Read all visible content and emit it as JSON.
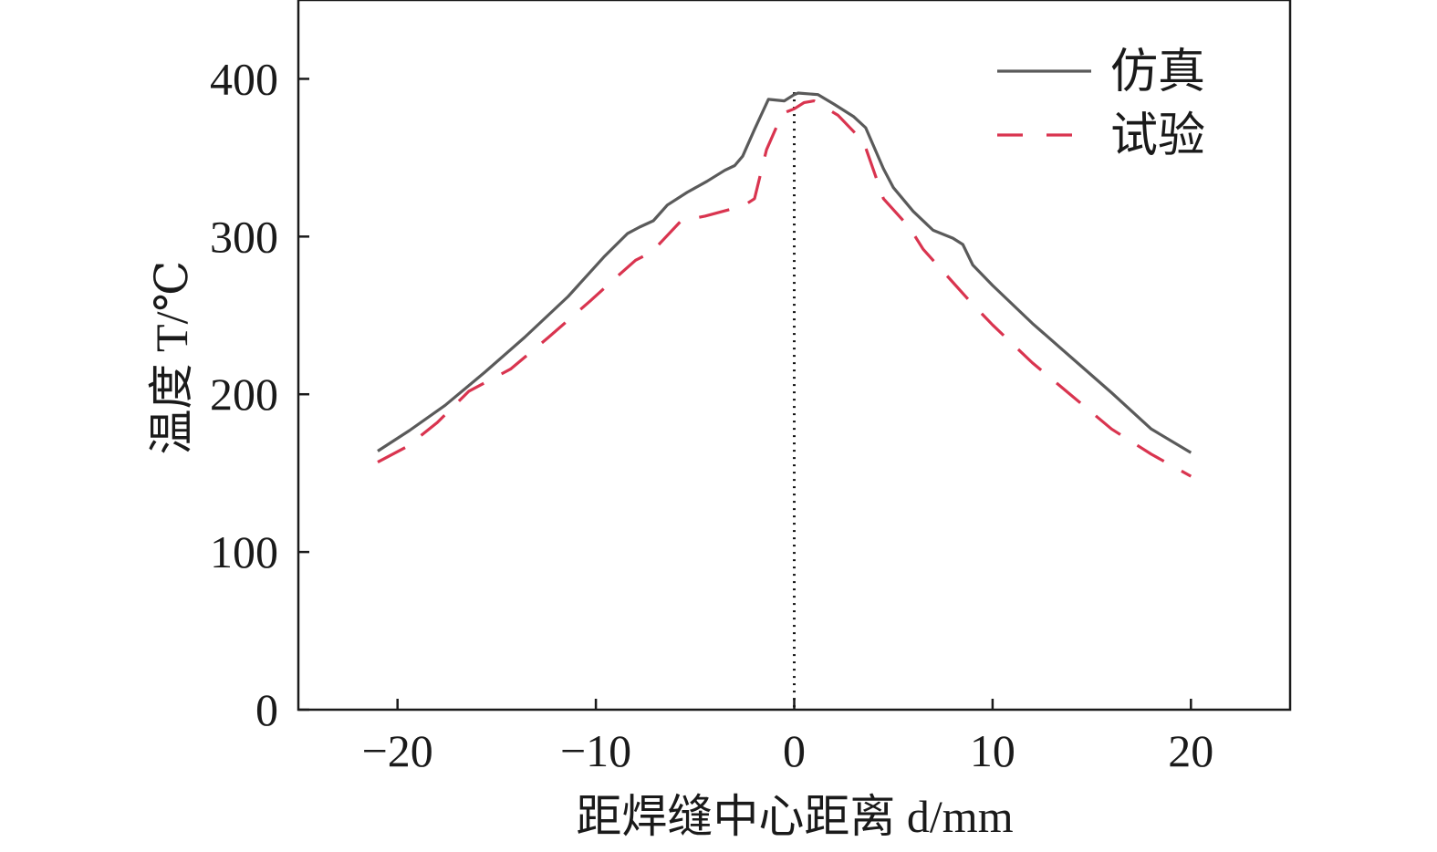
{
  "chart_data": {
    "type": "line",
    "xlabel": "距焊缝中心距离 d/mm",
    "ylabel": "温度 T/℃",
    "xlim": [
      -25,
      25
    ],
    "ylim": [
      0,
      450
    ],
    "xticks": [
      -20,
      -10,
      0,
      10,
      20
    ],
    "xtick_labels": [
      "−20",
      "−10",
      "0",
      "10",
      "20"
    ],
    "yticks": [
      0,
      100,
      200,
      300,
      400
    ],
    "ytick_labels": [
      "0",
      "100",
      "200",
      "300",
      "400"
    ],
    "grid": false,
    "legend_position": "top-right",
    "reference_line_x": 0,
    "series": [
      {
        "name": "仿真",
        "color": "#5a5a5a",
        "style": "solid",
        "x": [
          -21,
          -19.4,
          -17.6,
          -15.6,
          -13.6,
          -11.4,
          -9.6,
          -8.4,
          -7.8,
          -7.1,
          -6.4,
          -5.4,
          -4.4,
          -3.5,
          -3.0,
          -2.6,
          -2.0,
          -1.3,
          -0.5,
          0.0,
          0.2,
          1.2,
          2.0,
          3.0,
          3.6,
          4.5,
          5.0,
          6.0,
          7.0,
          8.0,
          8.5,
          9.0,
          10.0,
          12.0,
          14.0,
          16.0,
          18.0,
          20.0
        ],
        "y": [
          164,
          177,
          193,
          214,
          236,
          262,
          287,
          302,
          306,
          310,
          320,
          328,
          335,
          342,
          345,
          351,
          368,
          387,
          386,
          390,
          391,
          390,
          384,
          376,
          369,
          343,
          331,
          316,
          304,
          299,
          295,
          282,
          269,
          245,
          223,
          201,
          178,
          163
        ]
      },
      {
        "name": "试验",
        "color": "#d9344f",
        "style": "dashed",
        "x": [
          -21,
          -19.5,
          -18.0,
          -16.4,
          -14.3,
          -12.4,
          -10.3,
          -8.9,
          -8.0,
          -7.2,
          -6.6,
          -5.7,
          -4.5,
          -3.3,
          -2.5,
          -2.0,
          -1.4,
          -0.6,
          0.0,
          0.5,
          1.0,
          2.2,
          3.5,
          4.5,
          5.5,
          6.0,
          6.5,
          8.0,
          9.0,
          10.0,
          12.0,
          14.0,
          16.0,
          18.0,
          20.0
        ],
        "y": [
          157,
          167,
          182,
          202,
          216,
          236,
          259,
          275,
          285,
          290,
          298,
          310,
          313,
          317,
          320,
          324,
          355,
          378,
          381,
          385,
          386,
          377,
          360,
          324,
          310,
          302,
          292,
          271,
          257,
          244,
          220,
          199,
          178,
          162,
          148
        ]
      }
    ]
  }
}
